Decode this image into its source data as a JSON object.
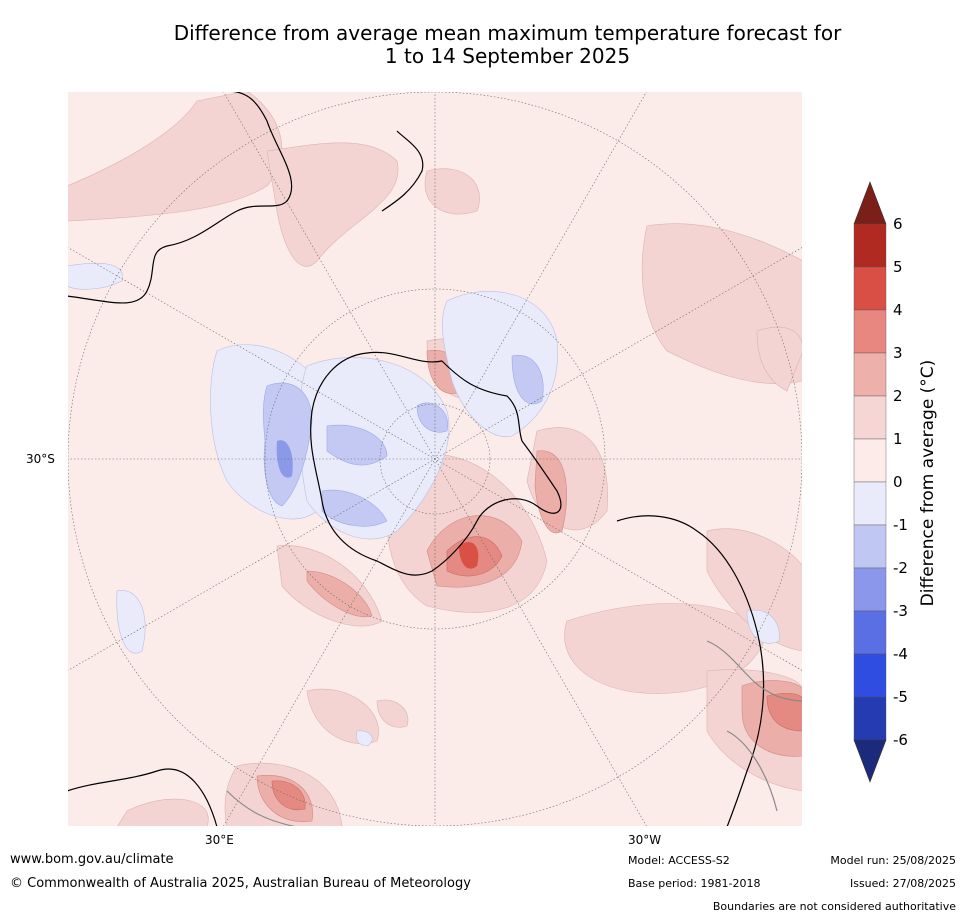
{
  "title": {
    "line1": "Difference from average mean maximum temperature forecast for",
    "line2": "1 to 14 September 2025"
  },
  "map": {
    "projection": "south-polar-stereographic",
    "labels": {
      "lat": "30°S",
      "lon_east": "30°E",
      "lon_west": "30°W"
    },
    "colors": {
      "bg": "#fbebe9",
      "pos1": "#f4d4d2",
      "pos2": "#ebaea8",
      "pos3": "#e48a82",
      "pos4": "#d95045",
      "neg1": "#e9ebfa",
      "neg2": "#c3c9f3",
      "neg3": "#8a9ae9"
    }
  },
  "colorbar": {
    "label": "Difference from average (°C)",
    "ticks": [
      "6",
      "5",
      "4",
      "3",
      "2",
      "1",
      "0",
      "-1",
      "-2",
      "-3",
      "-4",
      "-5",
      "-6"
    ],
    "colors": [
      "#b02a22",
      "#d94f45",
      "#e8877f",
      "#eeb0aa",
      "#f5d6d4",
      "#fcebe9",
      "#e9ebfa",
      "#c1c7f3",
      "#8a97ea",
      "#5b6fe4",
      "#2f4de0",
      "#243bb2"
    ],
    "over_color": "#7b1f18",
    "under_color": "#1c2a7c"
  },
  "footer": {
    "website": "www.bom.gov.au/climate",
    "copyright": "© Commonwealth of Australia 2025, Australian Bureau of Meteorology",
    "model": "Model: ACCESS-S2",
    "base_period": "Base period: 1981-2018",
    "model_run": "Model run: 25/08/2025",
    "issued": "Issued: 27/08/2025",
    "disclaimer": "Boundaries are not considered authoritative"
  }
}
